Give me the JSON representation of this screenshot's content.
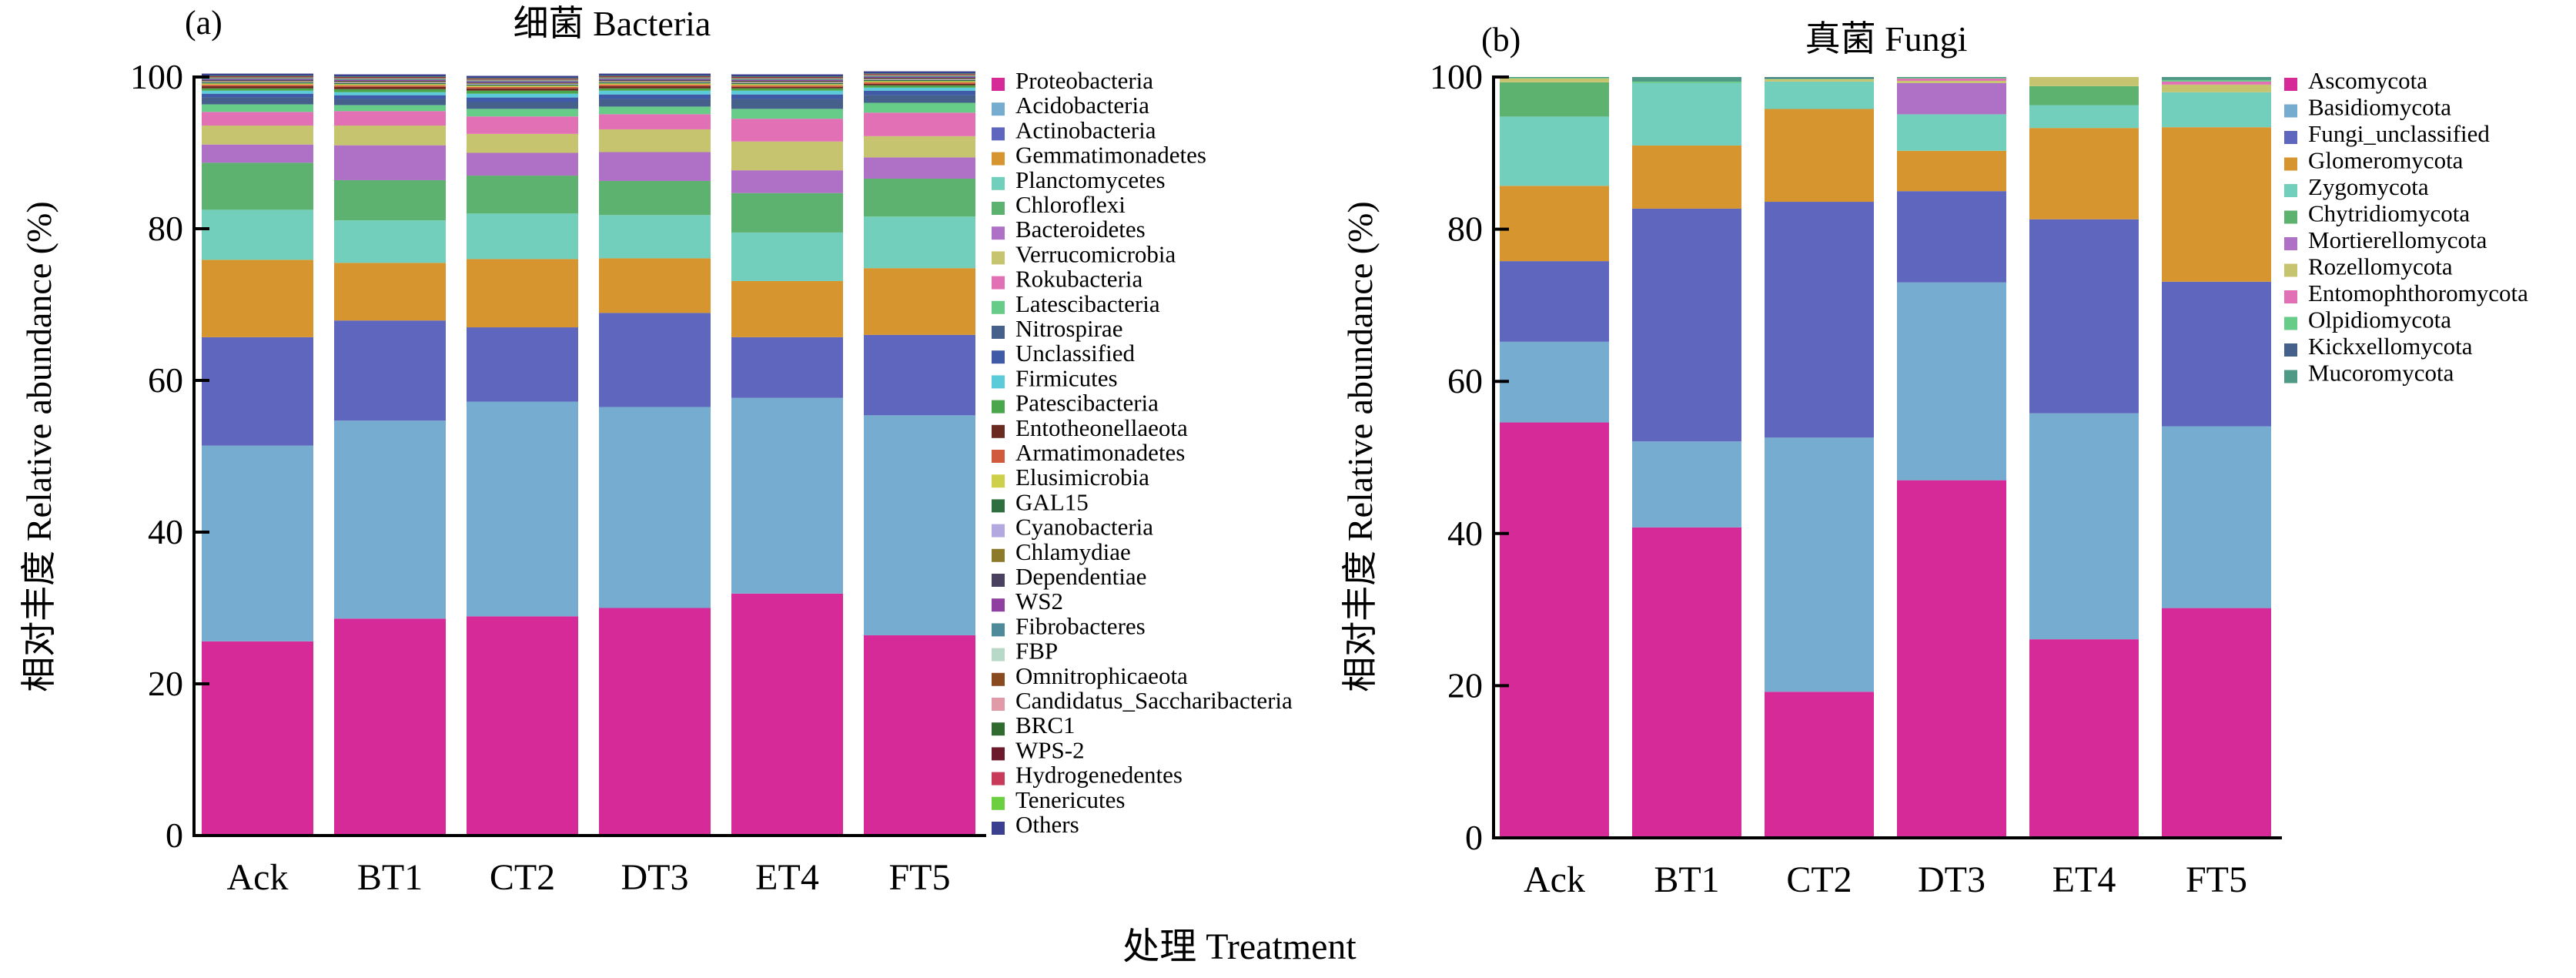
{
  "figure": {
    "shared_xlabel": "处理 Treatment"
  },
  "chart_data": [
    {
      "type": "bar",
      "stacked": true,
      "panel_label": "(a)",
      "title": "细菌 Bacteria",
      "ylabel": "相对丰度 Relative abundance (%)",
      "ylim": [
        0,
        100
      ],
      "yticks": [
        0,
        20,
        40,
        60,
        80,
        100
      ],
      "legend_position": "right",
      "categories": [
        "Ack",
        "BT1",
        "CT2",
        "DT3",
        "ET4",
        "FT5"
      ],
      "series": [
        {
          "name": "Proteobacteria",
          "color": "#d62a98",
          "values": [
            25.6,
            28.6,
            28.9,
            30.0,
            31.9,
            26.4
          ]
        },
        {
          "name": "Acidobacteria",
          "color": "#76acd0",
          "values": [
            25.8,
            26.1,
            28.3,
            26.5,
            25.8,
            29.0
          ]
        },
        {
          "name": "Actinobacteria",
          "color": "#5f66bd",
          "values": [
            14.3,
            13.2,
            9.8,
            12.4,
            8.0,
            10.6
          ]
        },
        {
          "name": "Gemmatimonadetes",
          "color": "#d7952f",
          "values": [
            10.2,
            7.6,
            9.0,
            7.2,
            7.4,
            8.8
          ]
        },
        {
          "name": "Planctomycetes",
          "color": "#72cfbb",
          "values": [
            6.6,
            5.6,
            6.0,
            5.7,
            6.4,
            6.8
          ]
        },
        {
          "name": "Chloroflexi",
          "color": "#5cb26e",
          "values": [
            6.2,
            5.3,
            5.0,
            4.5,
            5.2,
            5.0
          ]
        },
        {
          "name": "Bacteroidetes",
          "color": "#ae71c6",
          "values": [
            2.4,
            4.6,
            3.0,
            3.8,
            3.0,
            2.8
          ]
        },
        {
          "name": "Verrucomicrobia",
          "color": "#c7c470",
          "values": [
            2.5,
            2.6,
            2.5,
            3.0,
            3.8,
            2.8
          ]
        },
        {
          "name": "Rokubacteria",
          "color": "#e270b5",
          "values": [
            1.8,
            1.9,
            2.3,
            2.0,
            3.0,
            3.1
          ]
        },
        {
          "name": "Latescibacteria",
          "color": "#66cc88",
          "values": [
            1.0,
            0.8,
            1.0,
            1.0,
            1.3,
            1.3
          ]
        },
        {
          "name": "Nitrospirae",
          "color": "#46608c",
          "values": [
            0.9,
            0.8,
            0.9,
            1.0,
            1.3,
            1.0
          ]
        },
        {
          "name": "Unclassified",
          "color": "#3f5aa6",
          "values": [
            0.5,
            0.5,
            0.6,
            0.6,
            0.6,
            0.6
          ]
        },
        {
          "name": "Firmicutes",
          "color": "#5ccbd9",
          "values": [
            0.4,
            0.4,
            0.5,
            0.5,
            0.5,
            0.4
          ]
        },
        {
          "name": "Patescibacteria",
          "color": "#4aa64a",
          "values": [
            0.3,
            0.4,
            0.4,
            0.3,
            0.3,
            0.3
          ]
        },
        {
          "name": "Entotheonellaeota",
          "color": "#6b2a1f",
          "values": [
            0.3,
            0.3,
            0.3,
            0.3,
            0.2,
            0.2
          ]
        },
        {
          "name": "Armatimonadetes",
          "color": "#d15a3c",
          "values": [
            0.2,
            0.2,
            0.2,
            0.2,
            0.2,
            0.2
          ]
        },
        {
          "name": "Elusimicrobia",
          "color": "#cfd04a",
          "values": [
            0.15,
            0.15,
            0.15,
            0.15,
            0.15,
            0.15
          ]
        },
        {
          "name": "GAL15",
          "color": "#2f6f3f",
          "values": [
            0.15,
            0.15,
            0.15,
            0.15,
            0.15,
            0.15
          ]
        },
        {
          "name": "Cyanobacteria",
          "color": "#b3a8e0",
          "values": [
            0.1,
            0.1,
            0.1,
            0.1,
            0.1,
            0.1
          ]
        },
        {
          "name": "Chlamydiae",
          "color": "#8c7a2a",
          "values": [
            0.1,
            0.1,
            0.1,
            0.1,
            0.1,
            0.1
          ]
        },
        {
          "name": "Dependentiae",
          "color": "#4a4060",
          "values": [
            0.1,
            0.1,
            0.1,
            0.1,
            0.1,
            0.1
          ]
        },
        {
          "name": "WS2",
          "color": "#8f3f9f",
          "values": [
            0.1,
            0.1,
            0.1,
            0.1,
            0.1,
            0.1
          ]
        },
        {
          "name": "Fibrobacteres",
          "color": "#4f8a9a",
          "values": [
            0.1,
            0.1,
            0.1,
            0.1,
            0.1,
            0.1
          ]
        },
        {
          "name": "FBP",
          "color": "#b8d8c8",
          "values": [
            0.05,
            0.05,
            0.05,
            0.05,
            0.05,
            0.05
          ]
        },
        {
          "name": "Omnitrophicaeota",
          "color": "#8a4a1f",
          "values": [
            0.05,
            0.05,
            0.05,
            0.05,
            0.05,
            0.05
          ]
        },
        {
          "name": "Candidatus_Saccharibacteria",
          "color": "#e09aa8",
          "values": [
            0.05,
            0.05,
            0.05,
            0.05,
            0.05,
            0.05
          ]
        },
        {
          "name": "BRC1",
          "color": "#2f6a2f",
          "values": [
            0.05,
            0.05,
            0.05,
            0.05,
            0.05,
            0.05
          ]
        },
        {
          "name": "WPS-2",
          "color": "#6a1a2a",
          "values": [
            0.05,
            0.05,
            0.05,
            0.05,
            0.05,
            0.05
          ]
        },
        {
          "name": "Hydrogenedentes",
          "color": "#c83a5a",
          "values": [
            0.05,
            0.05,
            0.05,
            0.05,
            0.05,
            0.05
          ]
        },
        {
          "name": "Tenericutes",
          "color": "#6ccf3f",
          "values": [
            0.05,
            0.05,
            0.05,
            0.05,
            0.05,
            0.05
          ]
        },
        {
          "name": "Others",
          "color": "#3a3f8f",
          "values": [
            0.3,
            0.3,
            0.3,
            0.3,
            0.3,
            0.3
          ]
        }
      ]
    },
    {
      "type": "bar",
      "stacked": true,
      "panel_label": "(b)",
      "title": "真菌 Fungi",
      "ylabel": "相对丰度 Relative abundance (%)",
      "ylim": [
        0,
        100
      ],
      "yticks": [
        0,
        20,
        40,
        60,
        80,
        100
      ],
      "legend_position": "right",
      "categories": [
        "Ack",
        "BT1",
        "CT2",
        "DT3",
        "ET4",
        "FT5"
      ],
      "series": [
        {
          "name": "Ascomycota",
          "color": "#d62a98",
          "values": [
            54.6,
            40.8,
            19.2,
            47.0,
            26.1,
            30.2
          ]
        },
        {
          "name": "Basidiomycota",
          "color": "#76acd0",
          "values": [
            10.6,
            11.3,
            33.4,
            26.0,
            29.7,
            23.9
          ]
        },
        {
          "name": "Fungi_unclassified",
          "color": "#5f66bd",
          "values": [
            10.6,
            30.6,
            31.0,
            12.0,
            25.5,
            19.0
          ]
        },
        {
          "name": "Glomeromycota",
          "color": "#d7952f",
          "values": [
            9.9,
            8.3,
            12.2,
            5.3,
            12.0,
            20.3
          ]
        },
        {
          "name": "Zygomycota",
          "color": "#72cfbb",
          "values": [
            9.1,
            8.2,
            3.6,
            4.8,
            3.0,
            4.6
          ]
        },
        {
          "name": "Chytridiomycota",
          "color": "#5cb26e",
          "values": [
            4.5,
            0.0,
            0.0,
            0.0,
            2.5,
            0.0
          ]
        },
        {
          "name": "Mortierellomycota",
          "color": "#ae71c6",
          "values": [
            0.0,
            0.0,
            0.0,
            4.1,
            0.0,
            0.0
          ]
        },
        {
          "name": "Rozellomycota",
          "color": "#c7c470",
          "values": [
            0.5,
            0.0,
            0.3,
            0.3,
            1.2,
            1.0
          ]
        },
        {
          "name": "Entomophthoromycota",
          "color": "#e270b5",
          "values": [
            0.0,
            0.0,
            0.0,
            0.3,
            0.0,
            0.4
          ]
        },
        {
          "name": "Olpidiomycota",
          "color": "#66cc88",
          "values": [
            0.1,
            0.2,
            0.1,
            0.1,
            0.0,
            0.2
          ]
        },
        {
          "name": "Kickxellomycota",
          "color": "#46608c",
          "values": [
            0.0,
            0.0,
            0.1,
            0.0,
            0.0,
            0.0
          ]
        },
        {
          "name": "Mucoromycota",
          "color": "#4e9a86",
          "values": [
            0.1,
            0.6,
            0.1,
            0.1,
            0.0,
            0.4
          ]
        }
      ]
    }
  ]
}
